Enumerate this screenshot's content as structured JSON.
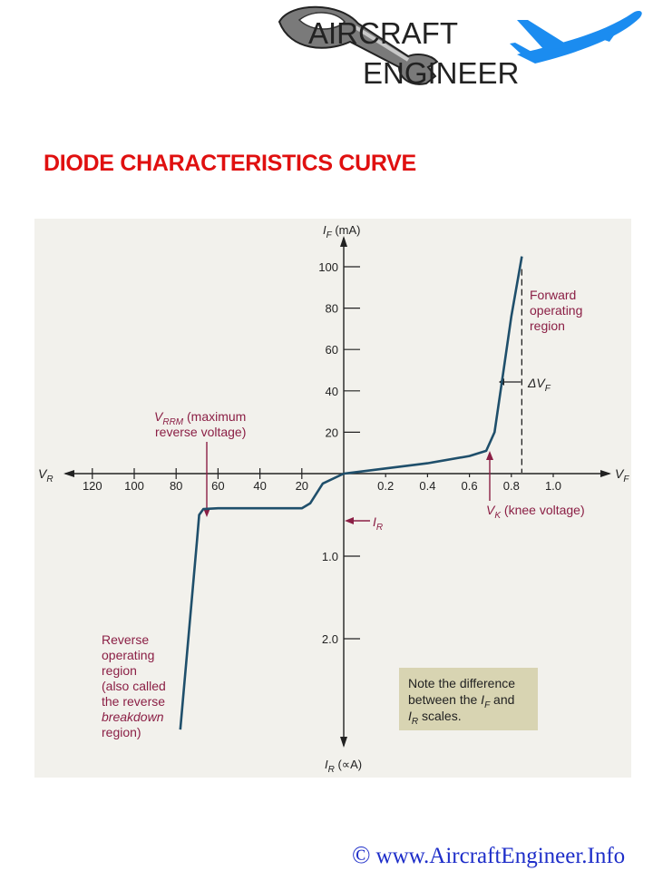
{
  "logo": {
    "line1": "AIRCRAFT",
    "line2": "ENGINEER",
    "icons": [
      "wrench-icon",
      "airplane-icon"
    ],
    "plane_color": "#1b8cf0"
  },
  "title": "DIODE CHARACTERISTICS CURVE",
  "colors": {
    "title": "#e01010",
    "panel": "#f2f1ec",
    "curve": "#1f4f6b",
    "annotation": "#8b1f45",
    "axis": "#222222",
    "note_box": "#d8d4b2",
    "footer": "#1e2ec9"
  },
  "chart_data": {
    "type": "line",
    "axes": {
      "y_top_label": {
        "main": "I",
        "sub": "F",
        "unit": " (mA)"
      },
      "y_bottom_label": {
        "main": "I",
        "sub": "R",
        "unit": " (∝A)"
      },
      "x_left_label": {
        "main": "V",
        "sub": "R"
      },
      "x_right_label": {
        "main": "V",
        "sub": "F"
      },
      "forward_voltage_ticks": [
        "0.2",
        "0.4",
        "0.6",
        "0.8",
        "1.0"
      ],
      "reverse_voltage_ticks": [
        "20",
        "40",
        "60",
        "80",
        "100",
        "120"
      ],
      "forward_current_ticks": [
        "20",
        "40",
        "60",
        "80",
        "100"
      ],
      "reverse_current_ticks": [
        "1.0",
        "2.0"
      ],
      "forward_voltage_range": [
        0,
        1.2
      ],
      "forward_current_range": [
        0,
        110
      ],
      "reverse_voltage_range": [
        0,
        125
      ],
      "reverse_current_range": [
        0,
        3.2
      ]
    },
    "series": [
      {
        "region": "forward",
        "points": [
          [
            0,
            0
          ],
          [
            0.2,
            2.5
          ],
          [
            0.4,
            5
          ],
          [
            0.6,
            8.5
          ],
          [
            0.68,
            11
          ],
          [
            0.72,
            20
          ],
          [
            0.76,
            48
          ],
          [
            0.8,
            76
          ],
          [
            0.85,
            105
          ]
        ]
      },
      {
        "region": "reverse",
        "points": [
          [
            0,
            0
          ],
          [
            10,
            0.12
          ],
          [
            16,
            0.36
          ],
          [
            20,
            0.42
          ],
          [
            60,
            0.42
          ],
          [
            67,
            0.43
          ],
          [
            69,
            0.5
          ],
          [
            70,
            0.8
          ],
          [
            78,
            3.1
          ]
        ]
      }
    ],
    "annotations": {
      "vrrm": {
        "main": "V",
        "sub": "RRM",
        "text": " (maximum",
        "line2": "reverse voltage)"
      },
      "vk": {
        "main": "V",
        "sub": "K",
        "text": " (knee voltage)"
      },
      "ir": {
        "main": "I",
        "sub": "R"
      },
      "delta_vf": {
        "main": "ΔV",
        "sub": "F"
      },
      "forward_region": [
        "Forward",
        "operating",
        "region"
      ],
      "reverse_region": [
        "Reverse",
        "operating",
        "region",
        "(also called",
        "the reverse",
        "breakdown",
        "region)"
      ],
      "note": {
        "line1": "Note the difference",
        "line2_pre": "between the ",
        "line2_main": "I",
        "line2_sub": "F",
        "line2_post": " and",
        "line3_main": "I",
        "line3_sub": "R",
        "line3_post": " scales."
      }
    }
  },
  "footer": {
    "copyright_symbol": "©",
    "url": "www.AircraftEngineer.Info"
  }
}
